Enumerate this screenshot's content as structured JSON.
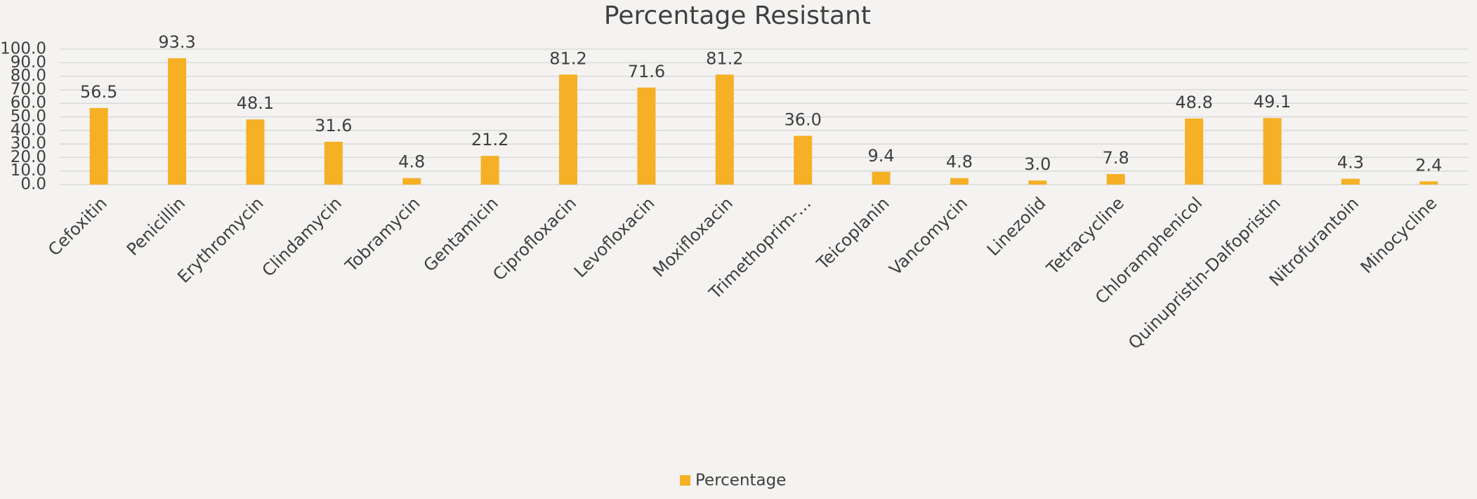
{
  "chart_data": {
    "type": "bar",
    "title": "Percentage Resistant",
    "categories": [
      "Cefoxitin",
      "Penicillin",
      "Erythromycin",
      "Clindamycin",
      "Tobramycin",
      "Gentamicin",
      "Ciprofloxacin",
      "Levofloxacin",
      "Moxifloxacin",
      "Trimethoprim-…",
      "Teicoplanin",
      "Vancomycin",
      "Linezolid",
      "Tetracycline",
      "Chloramphenicol",
      "Quinupristin-Dalfopristin",
      "Nitrofurantoin",
      "Minocycline"
    ],
    "series": [
      {
        "name": "Percentage",
        "color": "#f6b026",
        "values": [
          56.5,
          93.3,
          48.1,
          31.6,
          4.8,
          21.2,
          81.2,
          71.6,
          81.2,
          36.0,
          9.4,
          4.8,
          3.0,
          7.8,
          48.8,
          49.1,
          4.3,
          2.4
        ],
        "value_labels": [
          "56.5",
          "93.3",
          "48.1",
          "31.6",
          "4.8",
          "21.2",
          "81.2",
          "71.6",
          "81.2",
          "36.0",
          "9.4",
          "4.8",
          "3.0",
          "7.8",
          "48.8",
          "49.1",
          "4.3",
          "2.4"
        ]
      }
    ],
    "ylim": [
      0,
      100
    ],
    "yticks": [
      {
        "value": 0,
        "label": "0.0"
      },
      {
        "value": 10,
        "label": "10.0"
      },
      {
        "value": 20,
        "label": "20.0"
      },
      {
        "value": 30,
        "label": "30.0"
      },
      {
        "value": 40,
        "label": "40.0"
      },
      {
        "value": 50,
        "label": "50.0"
      },
      {
        "value": 60,
        "label": "60.0"
      },
      {
        "value": 70,
        "label": "70.0"
      },
      {
        "value": 80,
        "label": "80.0"
      },
      {
        "value": 90,
        "label": "90.0"
      },
      {
        "value": 100,
        "label": "100.0"
      }
    ],
    "grid": true,
    "legend": "bottom"
  }
}
